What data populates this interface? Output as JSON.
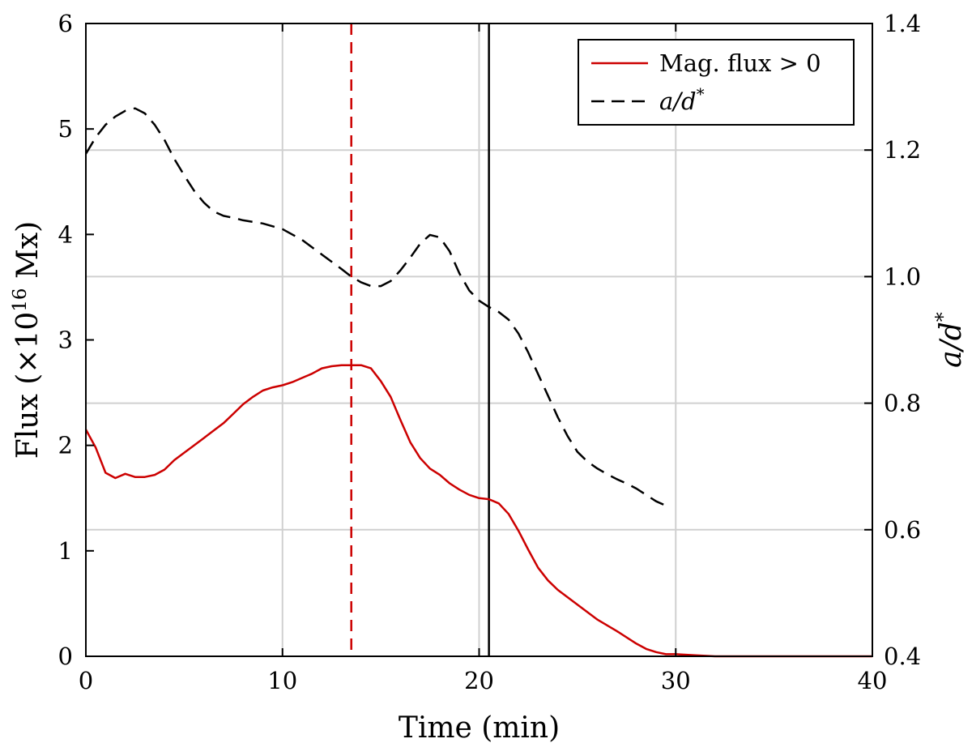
{
  "chart_data": {
    "type": "line",
    "title": "",
    "xlabel": "Time (min)",
    "ylabel": "Flux (×10¹⁶ Mx)",
    "ylabel_base": "Flux (×10",
    "ylabel_exp": "16",
    "ylabel_unit": " Mx)",
    "y2label": "a/d*",
    "y2label_main": "a/d",
    "y2label_sup": "*",
    "xlim": [
      0,
      40
    ],
    "ylim": [
      0,
      6
    ],
    "y2lim": [
      0.4,
      1.4
    ],
    "xticks": [
      "0",
      "10",
      "20",
      "30",
      "40"
    ],
    "yticks": [
      "0",
      "1",
      "2",
      "3",
      "4",
      "5",
      "6"
    ],
    "y2ticks": [
      "0.4",
      "0.6",
      "0.8",
      "1.0",
      "1.2",
      "1.4"
    ],
    "grid": true,
    "legend_position": "top-right",
    "series": [
      {
        "name": "Mag. flux > 0",
        "axis": "left",
        "color": "#cc0000",
        "style": "solid",
        "x": [
          0,
          0.5,
          1,
          1.5,
          2,
          2.5,
          3,
          3.5,
          4,
          4.5,
          5,
          5.5,
          6,
          6.5,
          7,
          7.5,
          8,
          8.5,
          9,
          9.5,
          10,
          10.5,
          11,
          11.5,
          12,
          12.5,
          13,
          13.5,
          14,
          14.5,
          15,
          15.5,
          16,
          16.5,
          17,
          17.5,
          18,
          18.5,
          19,
          19.5,
          20,
          20.5,
          21,
          21.5,
          22,
          22.5,
          23,
          23.5,
          24,
          25,
          26,
          27,
          28,
          28.5,
          29,
          29.5,
          30,
          31,
          32,
          33,
          34,
          35,
          36,
          37,
          38,
          39,
          40
        ],
        "y": [
          2.15,
          1.98,
          1.74,
          1.69,
          1.73,
          1.7,
          1.7,
          1.72,
          1.77,
          1.86,
          1.93,
          2.0,
          2.07,
          2.14,
          2.21,
          2.3,
          2.39,
          2.46,
          2.52,
          2.55,
          2.57,
          2.6,
          2.64,
          2.68,
          2.73,
          2.75,
          2.76,
          2.76,
          2.76,
          2.73,
          2.61,
          2.46,
          2.24,
          2.03,
          1.88,
          1.78,
          1.72,
          1.64,
          1.58,
          1.53,
          1.5,
          1.49,
          1.45,
          1.35,
          1.19,
          1.01,
          0.84,
          0.72,
          0.63,
          0.49,
          0.35,
          0.24,
          0.12,
          0.07,
          0.04,
          0.02,
          0.02,
          0.01,
          0.0,
          0.0,
          0.0,
          0.0,
          0.0,
          0.0,
          0.0,
          0.0,
          0.0
        ]
      },
      {
        "name": "a/d*",
        "axis": "right",
        "color": "#000000",
        "style": "dashed",
        "x": [
          0,
          0.5,
          1,
          1.5,
          2,
          2.5,
          3,
          3.5,
          4,
          4.5,
          5,
          5.5,
          6,
          6.5,
          7,
          7.5,
          8,
          9,
          10,
          11,
          12,
          13,
          13.5,
          14,
          14.5,
          15,
          15.5,
          16,
          16.5,
          17,
          17.5,
          18,
          18.5,
          19,
          19.5,
          20,
          20.5,
          21,
          21.5,
          22,
          22.5,
          23,
          23.5,
          24,
          24.5,
          25,
          25.5,
          26,
          26.5,
          27,
          27.5,
          28,
          28.5,
          29,
          29.5
        ],
        "y": [
          1.194,
          1.22,
          1.24,
          1.253,
          1.262,
          1.266,
          1.258,
          1.24,
          1.216,
          1.186,
          1.16,
          1.136,
          1.117,
          1.103,
          1.096,
          1.093,
          1.089,
          1.084,
          1.075,
          1.058,
          1.035,
          1.012,
          1.0,
          0.991,
          0.985,
          0.985,
          0.993,
          1.01,
          1.03,
          1.052,
          1.066,
          1.062,
          1.04,
          1.005,
          0.978,
          0.962,
          0.952,
          0.944,
          0.932,
          0.91,
          0.88,
          0.846,
          0.812,
          0.778,
          0.748,
          0.723,
          0.708,
          0.697,
          0.688,
          0.68,
          0.673,
          0.665,
          0.655,
          0.645,
          0.638
        ]
      }
    ],
    "vertical_lines": [
      {
        "x": 13.5,
        "color": "#cc0000",
        "style": "dashed"
      },
      {
        "x": 20.5,
        "color": "#000000",
        "style": "solid"
      }
    ]
  }
}
